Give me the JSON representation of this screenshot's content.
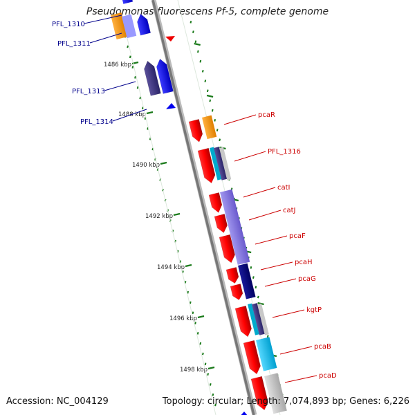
{
  "title": "Pseudomonas fluorescens Pf-5, complete genome",
  "footer": {
    "accession": "Accession: NC_004129",
    "summary": "Topology: circular; Length: 7,074,893 bp; Genes: 6,226"
  },
  "colors": {
    "plus_strand_label": "#00008b",
    "minus_strand_label": "#cc0000",
    "tick": "#1a7a1a",
    "backbone": "#888888"
  },
  "kbp_ticks": [
    {
      "label": "1486 kbp",
      "kbp": 1486
    },
    {
      "label": "1488 kbp",
      "kbp": 1488
    },
    {
      "label": "1490 kbp",
      "kbp": 1490
    },
    {
      "label": "1492 kbp",
      "kbp": 1492
    },
    {
      "label": "1494 kbp",
      "kbp": 1494
    },
    {
      "label": "1496 kbp",
      "kbp": 1496
    },
    {
      "label": "1498 kbp",
      "kbp": 1498
    }
  ],
  "plus_strand_labels": [
    "PFL_1310",
    "PFL_1311",
    "PFL_1313",
    "PFL_1314"
  ],
  "minus_strand_labels": [
    "pcaR",
    "PFL_1316",
    "catI",
    "catJ",
    "pcaF",
    "pcaH",
    "pcaG",
    "kgtP",
    "pcaB",
    "pcaD"
  ],
  "feature_colors": [
    "#ff0000",
    "#0000ff",
    "#ff9900",
    "#3d3580",
    "#8877dd",
    "#00b8e6",
    "#000080",
    "#c0c0c0"
  ]
}
